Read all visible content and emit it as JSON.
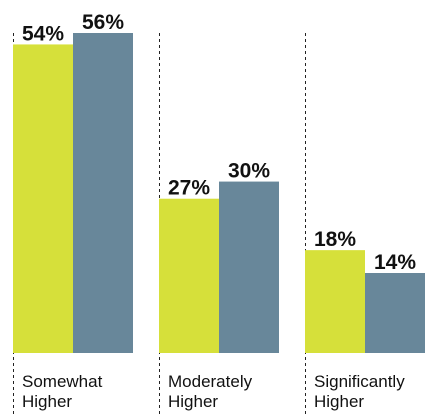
{
  "chart_data": {
    "type": "bar",
    "categories": [
      [
        "Somewhat",
        "Higher"
      ],
      [
        "Moderately",
        "Higher"
      ],
      [
        "Significantly",
        "Higher"
      ]
    ],
    "series": [
      {
        "values": [
          54,
          27,
          18
        ],
        "labels": [
          "54%",
          "27%",
          "18%"
        ],
        "color": "#d6e03a"
      },
      {
        "values": [
          56,
          30,
          14
        ],
        "labels": [
          "56%",
          "30%",
          "14%"
        ],
        "color": "#68879a"
      }
    ],
    "ylim": [
      0,
      56
    ],
    "grid": false,
    "legend": "none",
    "title": "",
    "xlabel": "",
    "ylabel": ""
  }
}
